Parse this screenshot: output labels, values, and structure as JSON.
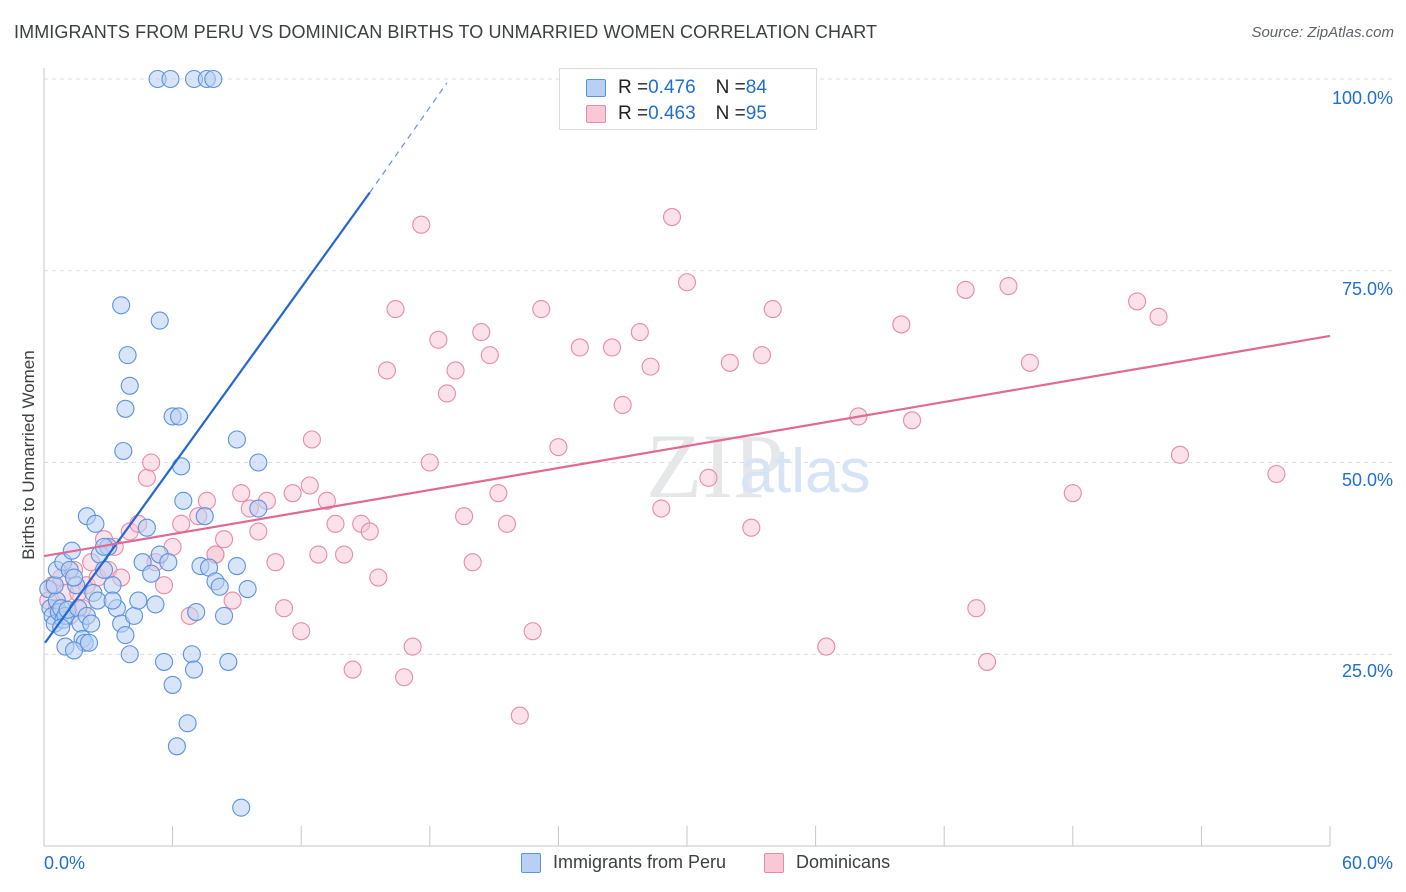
{
  "chart_data": {
    "type": "scatter",
    "title": "IMMIGRANTS FROM PERU VS DOMINICAN BIRTHS TO UNMARRIED WOMEN CORRELATION CHART",
    "source": "Source: ZipAtlas.com",
    "xlabel": "",
    "ylabel": "Births to Unmarried Women",
    "xlim": [
      0,
      60
    ],
    "ylim": [
      0,
      103
    ],
    "x_tick_labels": [
      "0.0%",
      "60.0%"
    ],
    "y_tick_labels": [
      "25.0%",
      "50.0%",
      "75.0%",
      "100.0%"
    ],
    "y_ticks": [
      25,
      50,
      75,
      100
    ],
    "grid": true,
    "watermark": "ZIPatlas",
    "legend": {
      "rows": [
        {
          "r_label": "R = ",
          "r_value": "0.476",
          "n_label": "N = ",
          "n_value": "84"
        },
        {
          "r_label": "R = ",
          "r_value": "0.463",
          "n_label": "N = ",
          "n_value": "95"
        }
      ]
    },
    "colors": {
      "peru_fill": "#b8d0f3",
      "peru_stroke": "#5b93e0",
      "peru_line": "#2467d0",
      "dom_fill": "#f8c8d7",
      "dom_stroke": "#e88ba8",
      "dom_line": "#e06a94",
      "grid": "#dadce0",
      "tick_text": "#1f6fd1"
    },
    "series": [
      {
        "name": "Immigrants from Peru",
        "r": 0.476,
        "n": 84,
        "trend": {
          "x0": 0.05,
          "y0": 26.5,
          "x1": 15.2,
          "y1": 85.2,
          "dash_x1": 18.8,
          "dash_y1": 99.5
        },
        "points": [
          [
            0.2,
            33.5
          ],
          [
            0.3,
            31
          ],
          [
            0.4,
            30
          ],
          [
            0.5,
            29
          ],
          [
            0.6,
            32
          ],
          [
            0.7,
            30.5
          ],
          [
            0.8,
            31
          ],
          [
            0.9,
            29.5
          ],
          [
            1.0,
            30
          ],
          [
            1.1,
            30.8
          ],
          [
            0.5,
            34
          ],
          [
            0.6,
            36
          ],
          [
            0.9,
            37
          ],
          [
            1.2,
            36
          ],
          [
            1.3,
            38.5
          ],
          [
            1.5,
            34
          ],
          [
            1.6,
            31
          ],
          [
            1.7,
            29
          ],
          [
            1.8,
            27
          ],
          [
            1.9,
            26.5
          ],
          [
            2.0,
            30
          ],
          [
            2.2,
            29
          ],
          [
            2.3,
            33
          ],
          [
            2.5,
            32
          ],
          [
            2.6,
            38
          ],
          [
            2.8,
            36
          ],
          [
            3.0,
            39
          ],
          [
            3.2,
            34
          ],
          [
            3.4,
            31
          ],
          [
            3.6,
            29
          ],
          [
            3.8,
            27.5
          ],
          [
            4.0,
            25
          ],
          [
            4.2,
            30
          ],
          [
            4.4,
            32
          ],
          [
            4.6,
            37
          ],
          [
            4.8,
            41.5
          ],
          [
            5.0,
            35.5
          ],
          [
            5.2,
            31.5
          ],
          [
            5.4,
            38
          ],
          [
            5.6,
            24
          ],
          [
            5.8,
            37
          ],
          [
            6.0,
            21
          ],
          [
            6.2,
            13
          ],
          [
            6.4,
            49.5
          ],
          [
            6.5,
            45
          ],
          [
            6.7,
            16
          ],
          [
            6.9,
            25
          ],
          [
            7.0,
            23
          ],
          [
            7.1,
            30.5
          ],
          [
            7.3,
            36.5
          ],
          [
            7.5,
            43
          ],
          [
            7.7,
            36.3
          ],
          [
            8.0,
            34.5
          ],
          [
            8.2,
            33.8
          ],
          [
            8.4,
            30
          ],
          [
            8.6,
            24
          ],
          [
            9.0,
            36.5
          ],
          [
            9.2,
            5
          ],
          [
            9.5,
            33.5
          ],
          [
            10.0,
            44
          ],
          [
            3.6,
            70.5
          ],
          [
            3.9,
            64
          ],
          [
            4.0,
            60
          ],
          [
            3.8,
            57
          ],
          [
            3.7,
            51.5
          ],
          [
            5.4,
            68.5
          ],
          [
            6.0,
            56
          ],
          [
            6.3,
            56
          ],
          [
            9.0,
            53
          ],
          [
            10.0,
            50
          ],
          [
            5.3,
            100
          ],
          [
            5.9,
            100
          ],
          [
            7.0,
            100
          ],
          [
            7.6,
            100
          ],
          [
            7.9,
            100
          ],
          [
            2.0,
            43
          ],
          [
            2.4,
            42
          ],
          [
            2.8,
            39
          ],
          [
            3.2,
            32
          ],
          [
            1.4,
            35
          ],
          [
            0.8,
            28.5
          ],
          [
            1.0,
            26
          ],
          [
            1.4,
            25.5
          ],
          [
            2.1,
            26.5
          ]
        ]
      },
      {
        "name": "Dominicans",
        "r": 0.463,
        "n": 95,
        "trend": {
          "x0": 0,
          "y0": 37.8,
          "x1": 60,
          "y1": 66.5
        },
        "points": [
          [
            0.2,
            32
          ],
          [
            0.4,
            34
          ],
          [
            0.6,
            31
          ],
          [
            0.8,
            35
          ],
          [
            1.0,
            33
          ],
          [
            1.2,
            30
          ],
          [
            1.4,
            36
          ],
          [
            1.6,
            33
          ],
          [
            1.8,
            31
          ],
          [
            2.0,
            34
          ],
          [
            2.2,
            37
          ],
          [
            2.5,
            35
          ],
          [
            2.8,
            40
          ],
          [
            3.0,
            36
          ],
          [
            3.3,
            39
          ],
          [
            3.6,
            35
          ],
          [
            4.0,
            41
          ],
          [
            4.4,
            42
          ],
          [
            4.8,
            48
          ],
          [
            5.2,
            37
          ],
          [
            5.6,
            34
          ],
          [
            6.0,
            39
          ],
          [
            6.4,
            42
          ],
          [
            6.8,
            30
          ],
          [
            7.2,
            43
          ],
          [
            7.6,
            45
          ],
          [
            8.0,
            38
          ],
          [
            8.4,
            40
          ],
          [
            8.8,
            32
          ],
          [
            9.2,
            46
          ],
          [
            9.6,
            44
          ],
          [
            10.0,
            41
          ],
          [
            10.4,
            45
          ],
          [
            10.8,
            37
          ],
          [
            11.2,
            31
          ],
          [
            11.6,
            46
          ],
          [
            12.0,
            28
          ],
          [
            12.4,
            47
          ],
          [
            12.8,
            38
          ],
          [
            13.2,
            45
          ],
          [
            13.6,
            42
          ],
          [
            14.0,
            38
          ],
          [
            14.4,
            23
          ],
          [
            14.8,
            42
          ],
          [
            15.2,
            41
          ],
          [
            15.6,
            35
          ],
          [
            16.0,
            62
          ],
          [
            16.4,
            70
          ],
          [
            16.8,
            22
          ],
          [
            17.2,
            26
          ],
          [
            17.6,
            81
          ],
          [
            18.0,
            50
          ],
          [
            18.4,
            66
          ],
          [
            18.8,
            59
          ],
          [
            19.2,
            62
          ],
          [
            19.6,
            43
          ],
          [
            20.0,
            37
          ],
          [
            20.4,
            67
          ],
          [
            20.8,
            64
          ],
          [
            21.2,
            46
          ],
          [
            21.6,
            42
          ],
          [
            22.2,
            17
          ],
          [
            22.8,
            28
          ],
          [
            23.2,
            70
          ],
          [
            24.0,
            52
          ],
          [
            25.0,
            65
          ],
          [
            26.5,
            65
          ],
          [
            27.0,
            57.5
          ],
          [
            27.8,
            67
          ],
          [
            28.3,
            62.5
          ],
          [
            28.8,
            44
          ],
          [
            29.3,
            82
          ],
          [
            30.0,
            73.5
          ],
          [
            31.0,
            48
          ],
          [
            32.0,
            63
          ],
          [
            33.0,
            41.5
          ],
          [
            33.5,
            64
          ],
          [
            34.0,
            70
          ],
          [
            36.5,
            26
          ],
          [
            38.0,
            56
          ],
          [
            40.0,
            68
          ],
          [
            40.5,
            55.5
          ],
          [
            43.0,
            72.5
          ],
          [
            43.5,
            31
          ],
          [
            44.0,
            24
          ],
          [
            45.0,
            73
          ],
          [
            46.0,
            63
          ],
          [
            48.0,
            46
          ],
          [
            51.0,
            71
          ],
          [
            52.0,
            69
          ],
          [
            53.0,
            51
          ],
          [
            57.5,
            48.5
          ],
          [
            5.0,
            50
          ],
          [
            8.0,
            38
          ],
          [
            12.5,
            53
          ]
        ]
      }
    ]
  },
  "bottom_legend": [
    "Immigrants from Peru",
    "Dominicans"
  ]
}
